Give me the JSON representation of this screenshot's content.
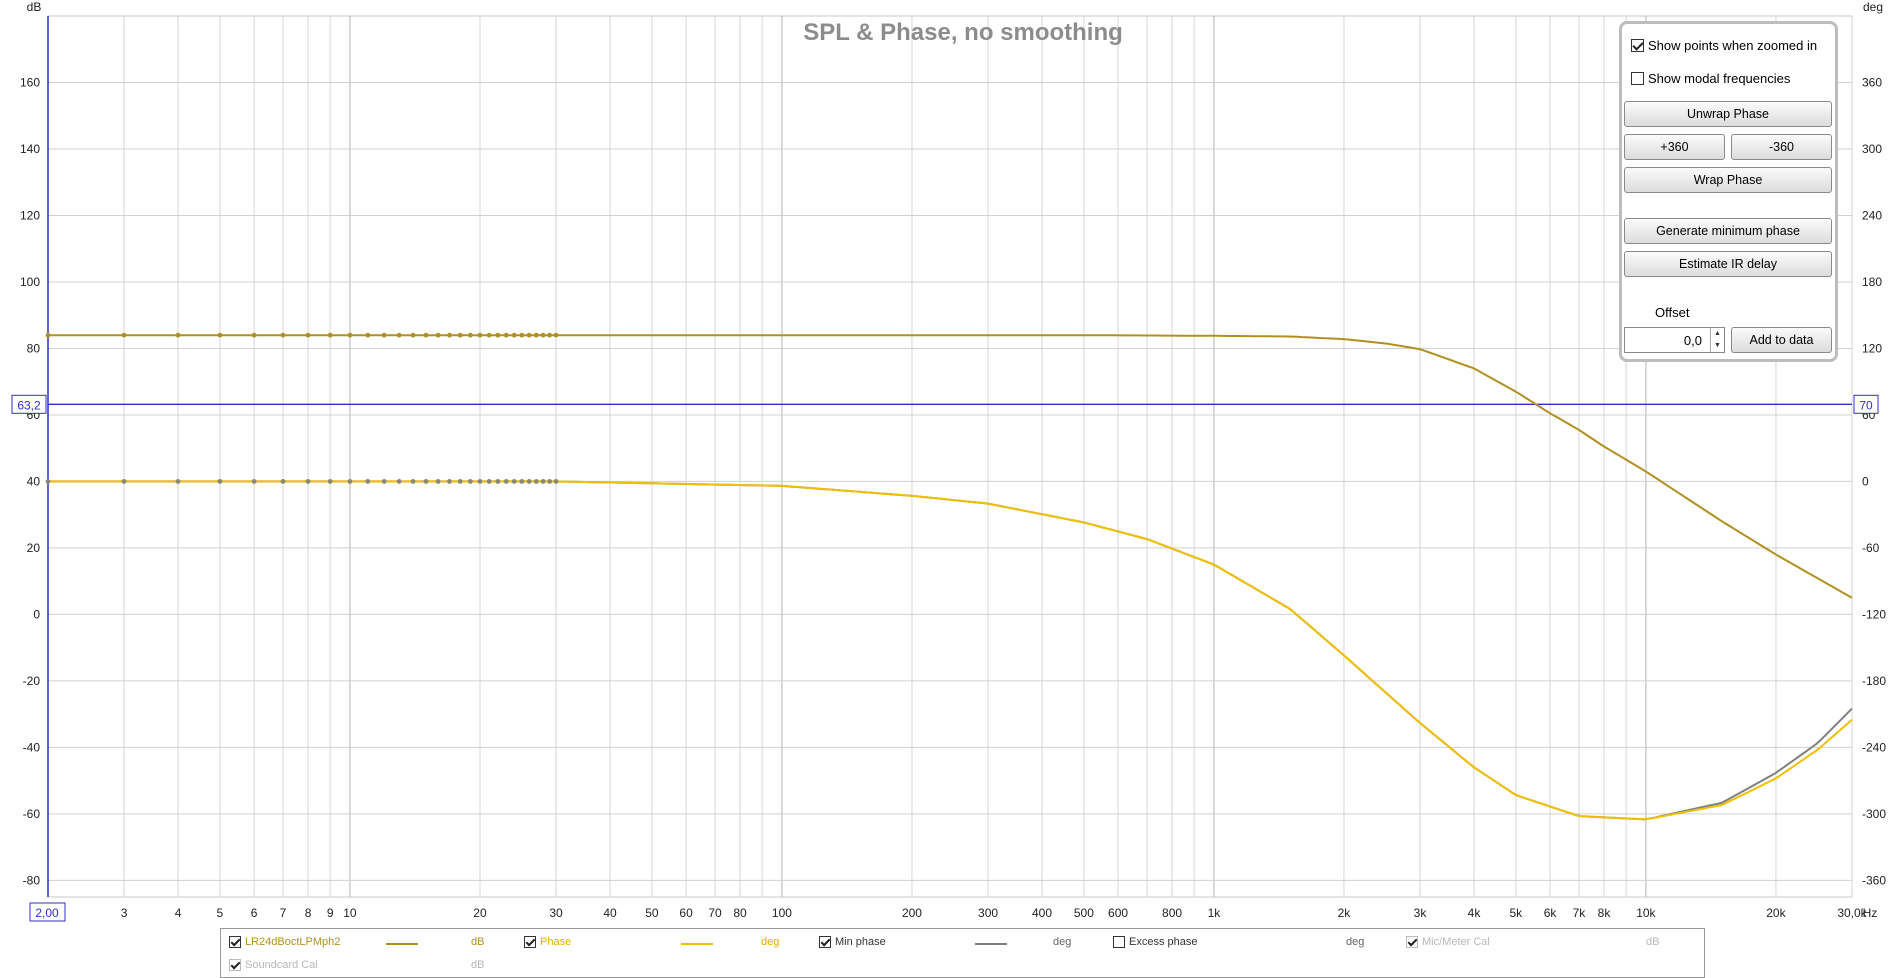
{
  "chart_data": {
    "type": "line",
    "title": "SPL & Phase, no smoothing",
    "x_axis": {
      "scale": "log",
      "unit": "Hz",
      "range": [
        2,
        30000
      ],
      "range_label_left": "2,00",
      "tick_labels": [
        {
          "v": 3,
          "t": "3"
        },
        {
          "v": 4,
          "t": "4"
        },
        {
          "v": 5,
          "t": "5"
        },
        {
          "v": 6,
          "t": "6"
        },
        {
          "v": 7,
          "t": "7"
        },
        {
          "v": 8,
          "t": "8"
        },
        {
          "v": 9,
          "t": "9"
        },
        {
          "v": 10,
          "t": "10"
        },
        {
          "v": 20,
          "t": "20"
        },
        {
          "v": 30,
          "t": "30"
        },
        {
          "v": 40,
          "t": "40"
        },
        {
          "v": 50,
          "t": "50"
        },
        {
          "v": 60,
          "t": "60"
        },
        {
          "v": 70,
          "t": "70"
        },
        {
          "v": 80,
          "t": "80"
        },
        {
          "v": 100,
          "t": "100"
        },
        {
          "v": 200,
          "t": "200"
        },
        {
          "v": 300,
          "t": "300"
        },
        {
          "v": 400,
          "t": "400"
        },
        {
          "v": 500,
          "t": "500"
        },
        {
          "v": 600,
          "t": "600"
        },
        {
          "v": 800,
          "t": "800"
        },
        {
          "v": 1000,
          "t": "1k"
        },
        {
          "v": 2000,
          "t": "2k"
        },
        {
          "v": 3000,
          "t": "3k"
        },
        {
          "v": 4000,
          "t": "4k"
        },
        {
          "v": 5000,
          "t": "5k"
        },
        {
          "v": 6000,
          "t": "6k"
        },
        {
          "v": 7000,
          "t": "7k"
        },
        {
          "v": 8000,
          "t": "8k"
        },
        {
          "v": 10000,
          "t": "10k"
        },
        {
          "v": 20000,
          "t": "20k"
        },
        {
          "v": 30000,
          "t": "30,0k"
        }
      ]
    },
    "y_left": {
      "unit": "dB",
      "range": [
        -85,
        180
      ],
      "ticks": [
        -80,
        -60,
        -40,
        -20,
        0,
        20,
        40,
        60,
        80,
        100,
        120,
        140,
        160
      ]
    },
    "y_right": {
      "unit": "deg",
      "range": [
        -375,
        420
      ],
      "ticks": [
        -360,
        -300,
        -240,
        -180,
        -120,
        -60,
        0,
        60,
        120,
        180,
        240,
        300,
        360
      ]
    },
    "cursor": {
      "db": 63.2,
      "db_label": "63,2",
      "deg": 70,
      "deg_label": "70"
    },
    "grid": true,
    "legend_position": "bottom",
    "series": [
      {
        "name": "LR24dBoctLPMph2",
        "unit": "dB",
        "axis": "left",
        "color": "#b09020",
        "x": [
          2,
          5,
          10,
          20,
          50,
          100,
          200,
          500,
          700,
          1000,
          1500,
          2000,
          2500,
          3000,
          4000,
          5000,
          6000,
          7000,
          8000,
          10000,
          15000,
          20000,
          30000
        ],
        "y": [
          84,
          84,
          84,
          84,
          84,
          84,
          84,
          84,
          83.9,
          83.8,
          83.6,
          82.8,
          81.5,
          79.8,
          74,
          67,
          60.5,
          55.5,
          50.5,
          43,
          28,
          18,
          5
        ]
      },
      {
        "name": "Phase",
        "unit": "deg",
        "axis": "right",
        "color": "#f0c000",
        "x": [
          2,
          10,
          30,
          100,
          200,
          300,
          500,
          700,
          1000,
          1500,
          2000,
          3000,
          4000,
          5000,
          7000,
          10000,
          15000,
          20000,
          25000,
          30000
        ],
        "y": [
          0,
          0,
          0,
          -4,
          -13,
          -20,
          -37,
          -52,
          -75,
          -115,
          -157,
          -218,
          -258,
          -283,
          -302,
          -305,
          -292,
          -268,
          -242,
          -215
        ]
      },
      {
        "name": "Min phase",
        "unit": "deg",
        "axis": "right",
        "color": "#808080",
        "x": [
          2,
          10,
          30,
          100,
          200,
          300,
          500,
          700,
          1000,
          1500,
          2000,
          3000,
          4000,
          5000,
          7000,
          10000,
          15000,
          20000,
          25000,
          30000
        ],
        "y": [
          0,
          0,
          0,
          -4,
          -13,
          -20,
          -37,
          -52,
          -75,
          -115,
          -157,
          -218,
          -258,
          -283,
          -302,
          -305,
          -290,
          -263,
          -236,
          -205
        ]
      }
    ],
    "measured_points": {
      "spl_db": 84,
      "phase_deg": 0,
      "x": [
        2,
        3,
        4,
        5,
        6,
        7,
        8,
        9,
        10,
        11,
        12,
        13,
        14,
        15,
        16,
        17,
        18,
        19,
        20,
        21,
        22,
        23,
        24,
        25,
        26,
        27,
        28,
        29,
        30
      ]
    }
  },
  "panel": {
    "show_points": "Show points when zoomed in",
    "show_points_checked": true,
    "show_modal": "Show modal frequencies",
    "show_modal_checked": false,
    "unwrap": "Unwrap Phase",
    "plus360": "+360",
    "minus360": "-360",
    "wrap": "Wrap Phase",
    "gen_min": "Generate minimum phase",
    "estimate": "Estimate IR delay",
    "offset_label": "Offset",
    "offset_value": "0,0",
    "add_to_data": "Add to data"
  },
  "legend": {
    "items": [
      {
        "label": "LR24dBoctLPMph2",
        "unit": "dB",
        "checked": true,
        "color": "#b09020",
        "dim": false
      },
      {
        "label": "Phase",
        "unit": "deg",
        "checked": true,
        "color": "#f0c000",
        "dim": false
      },
      {
        "label": "Min phase",
        "unit": "deg",
        "checked": true,
        "color": "#808080",
        "dim": false
      },
      {
        "label": "Excess phase",
        "unit": "deg",
        "checked": false,
        "color": "",
        "dim": false
      },
      {
        "label": "Mic/Meter Cal",
        "unit": "dB",
        "checked": true,
        "color": "",
        "dim": true
      },
      {
        "label": "Soundcard Cal",
        "unit": "dB",
        "checked": true,
        "color": "",
        "dim": true
      }
    ]
  }
}
